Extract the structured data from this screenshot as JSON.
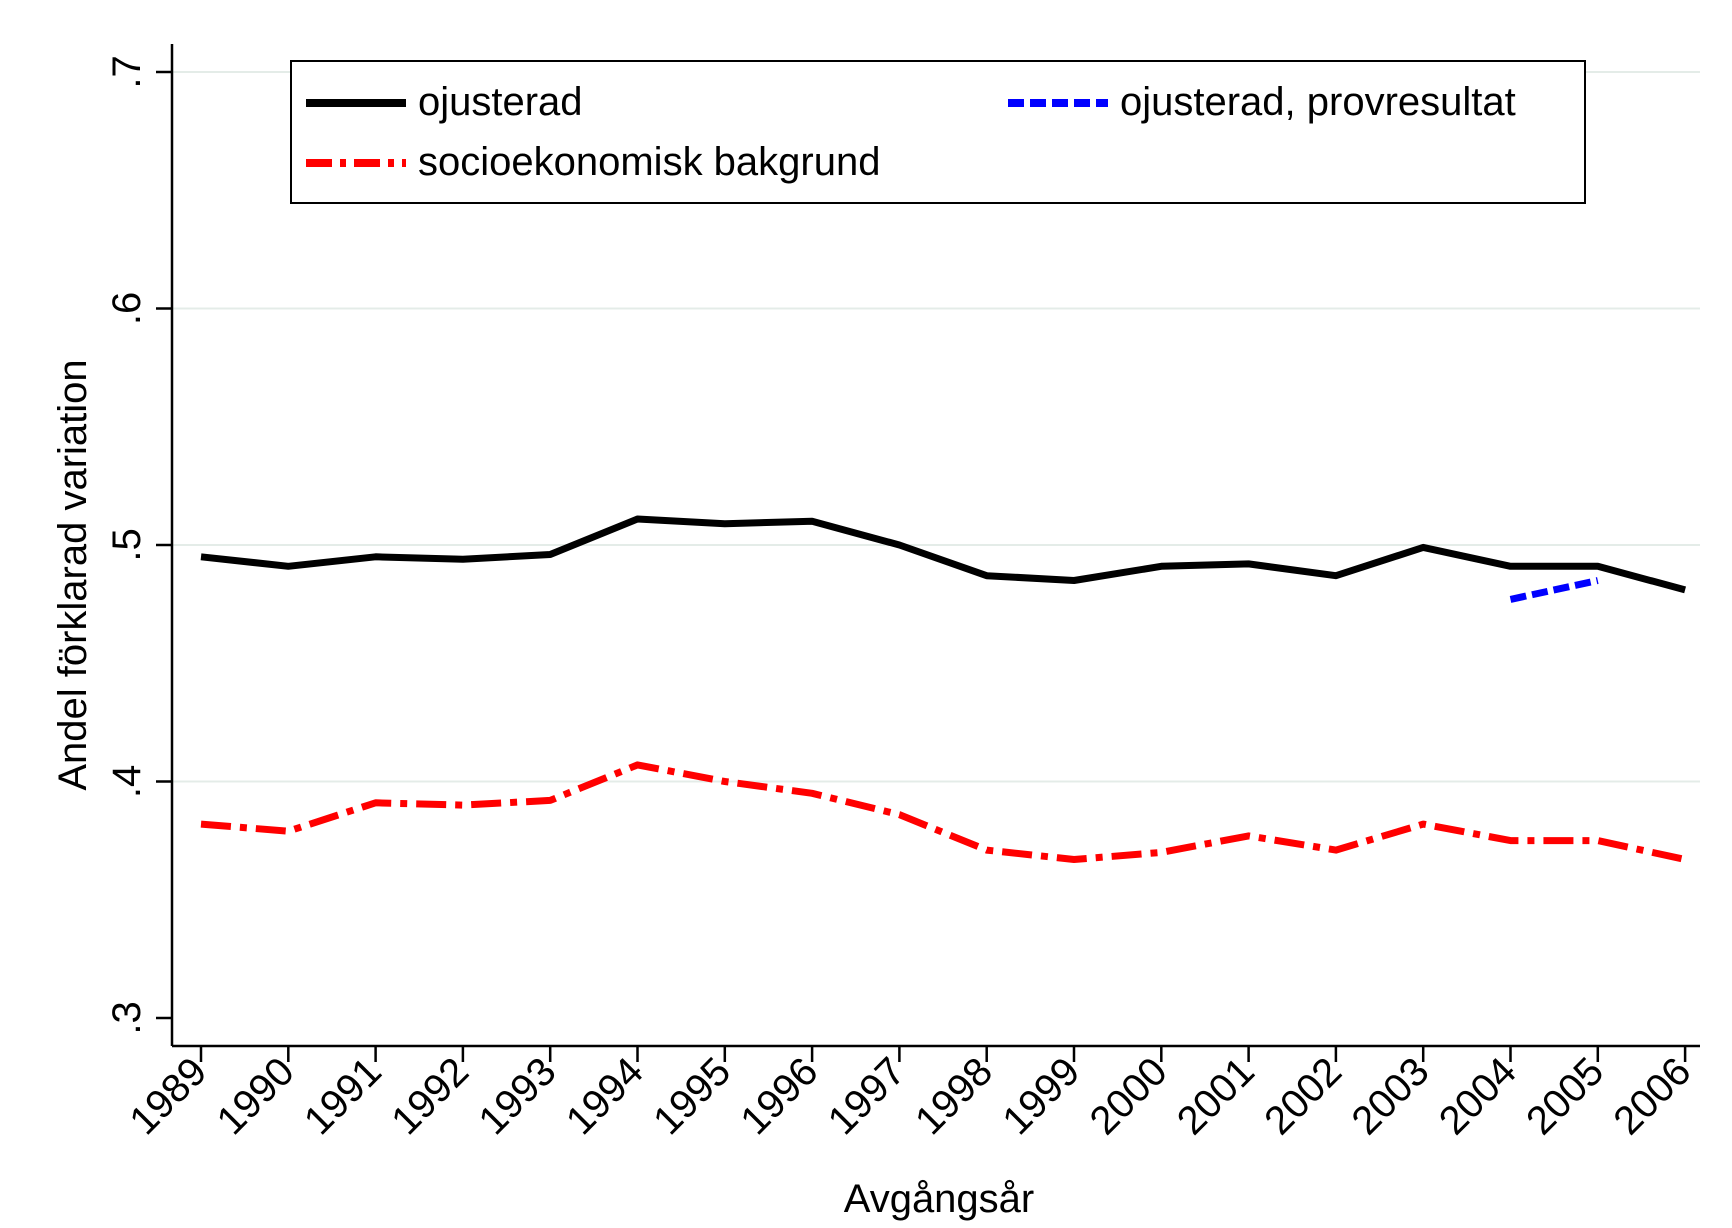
{
  "chart_data": {
    "type": "line",
    "xlabel": "Avgångsår",
    "ylabel": "Andel förklarad variation",
    "ylim": [
      0.3,
      0.7
    ],
    "yticks": [
      0.3,
      0.4,
      0.5,
      0.6,
      0.7
    ],
    "ytick_labels": [
      ".3",
      ".4",
      ".5",
      ".6",
      ".7"
    ],
    "categories": [
      "1989",
      "1990",
      "1991",
      "1992",
      "1993",
      "1994",
      "1995",
      "1996",
      "1997",
      "1998",
      "1999",
      "2000",
      "2001",
      "2002",
      "2003",
      "2004",
      "2005",
      "2006"
    ],
    "grid": true,
    "legend_position": "top",
    "series": [
      {
        "name": "ojusterad",
        "color": "#000000",
        "style": "solid",
        "values": [
          0.495,
          0.491,
          0.495,
          0.494,
          0.496,
          0.511,
          0.509,
          0.51,
          0.5,
          0.487,
          0.485,
          0.491,
          0.492,
          0.487,
          0.499,
          0.491,
          0.491,
          0.481
        ]
      },
      {
        "name": "ojusterad, provresultat",
        "color": "#0000ff",
        "style": "dashed",
        "values": [
          null,
          null,
          null,
          null,
          null,
          null,
          null,
          null,
          null,
          null,
          null,
          null,
          null,
          null,
          null,
          0.477,
          0.485,
          null
        ]
      },
      {
        "name": "socioekonomisk bakgrund",
        "color": "#ff0000",
        "style": "dash-dot",
        "values": [
          0.382,
          0.379,
          0.391,
          0.39,
          0.392,
          0.407,
          0.4,
          0.395,
          0.386,
          0.371,
          0.367,
          0.37,
          0.377,
          0.371,
          0.382,
          0.375,
          0.375,
          0.367
        ]
      }
    ]
  }
}
